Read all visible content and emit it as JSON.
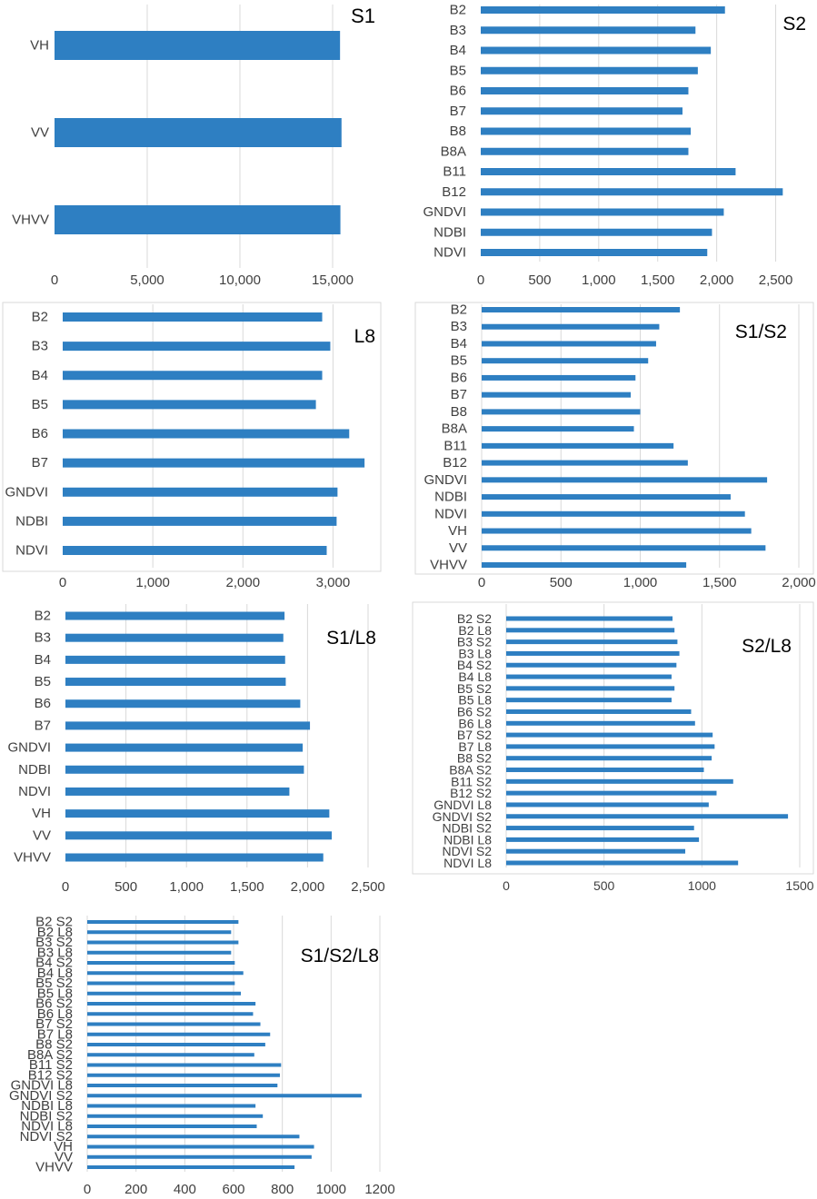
{
  "colors": {
    "bar": "#2e7fc2",
    "grid": "#d9d9d9",
    "text": "#404040",
    "title": "#000000"
  },
  "chart_data": [
    {
      "type": "bar",
      "orientation": "horizontal",
      "title": "S1",
      "categories": [
        "VH",
        "VV",
        "VHVV"
      ],
      "values": [
        15400,
        15480,
        15420
      ],
      "xlim": [
        0,
        17500
      ],
      "xticks": [
        0,
        5000,
        10000,
        15000
      ],
      "xtick_labels": [
        "0",
        "5,000",
        "10,000",
        "15,000"
      ],
      "legend": "none",
      "grid": true
    },
    {
      "type": "bar",
      "orientation": "horizontal",
      "title": "S2",
      "categories": [
        "B2",
        "B3",
        "B4",
        "B5",
        "B6",
        "B7",
        "B8",
        "B8A",
        "B11",
        "B12",
        "GNDVI",
        "NDBI",
        "NDVI"
      ],
      "values": [
        2070,
        1820,
        1950,
        1840,
        1760,
        1710,
        1780,
        1760,
        2160,
        2560,
        2060,
        1960,
        1920
      ],
      "xlim": [
        0,
        2750
      ],
      "xticks": [
        0,
        500,
        1000,
        1500,
        2000,
        2500
      ],
      "xtick_labels": [
        "0",
        "500",
        "1,000",
        "1,500",
        "2,000",
        "2,500"
      ],
      "legend": "none",
      "grid": true
    },
    {
      "type": "bar",
      "orientation": "horizontal",
      "title": "L8",
      "categories": [
        "B2",
        "B3",
        "B4",
        "B5",
        "B6",
        "B7",
        "GNDVI",
        "NDBI",
        "NDVI"
      ],
      "values": [
        2880,
        2970,
        2880,
        2810,
        3180,
        3350,
        3050,
        3040,
        2930
      ],
      "xlim": [
        0,
        3500
      ],
      "xticks": [
        0,
        1000,
        2000,
        3000
      ],
      "xtick_labels": [
        "0",
        "1,000",
        "2,000",
        "3,000"
      ],
      "legend": "none",
      "grid": true
    },
    {
      "type": "bar",
      "orientation": "horizontal",
      "title": "S1/S2",
      "categories": [
        "B2",
        "B3",
        "B4",
        "B5",
        "B6",
        "B7",
        "B8",
        "B8A",
        "B11",
        "B12",
        "GNDVI",
        "NDBI",
        "NDVI",
        "VH",
        "VV",
        "VHVV"
      ],
      "values": [
        1250,
        1120,
        1100,
        1050,
        970,
        940,
        1000,
        960,
        1210,
        1300,
        1800,
        1570,
        1660,
        1700,
        1790,
        1290
      ],
      "xlim": [
        0,
        2000
      ],
      "xticks": [
        0,
        500,
        1000,
        1500,
        2000
      ],
      "xtick_labels": [
        "0",
        "500",
        "1,000",
        "1,500",
        "2,000"
      ],
      "legend": "none",
      "grid": true
    },
    {
      "type": "bar",
      "orientation": "horizontal",
      "title": "S1/L8",
      "categories": [
        "B2",
        "B3",
        "B4",
        "B5",
        "B6",
        "B7",
        "GNDVI",
        "NDBI",
        "NDVI",
        "VH",
        "VV",
        "VHVV"
      ],
      "values": [
        1810,
        1800,
        1815,
        1820,
        1940,
        2020,
        1960,
        1970,
        1850,
        2180,
        2200,
        2130
      ],
      "xlim": [
        0,
        2500
      ],
      "xticks": [
        0,
        500,
        1000,
        1500,
        2000,
        2500
      ],
      "xtick_labels": [
        "0",
        "500",
        "1,000",
        "1,500",
        "2,000",
        "2,500"
      ],
      "legend": "none",
      "grid": true
    },
    {
      "type": "bar",
      "orientation": "horizontal",
      "title": "S2/L8",
      "categories": [
        "B2 S2",
        "B2 L8",
        "B3 S2",
        "B3 L8",
        "B4 S2",
        "B4 L8",
        "B5 S2",
        "B5 L8",
        "B6 S2",
        "B6 L8",
        "B7 S2",
        "B7 L8",
        "B8 S2",
        "B8A S2",
        "B11 S2",
        "B12 S2",
        "GNDVI L8",
        "GNDVI S2",
        "NDBI S2",
        "NDBI L8",
        "NDVI S2",
        "NDVI L8"
      ],
      "values": [
        850,
        860,
        875,
        885,
        870,
        845,
        860,
        845,
        945,
        965,
        1055,
        1065,
        1050,
        1010,
        1160,
        1075,
        1035,
        1440,
        960,
        985,
        915,
        1185
      ],
      "xlim": [
        0,
        1500
      ],
      "xticks": [
        0,
        500,
        1000,
        1500
      ],
      "xtick_labels": [
        "0",
        "500",
        "1000",
        "1500"
      ],
      "legend": "none",
      "grid": true
    },
    {
      "type": "bar",
      "orientation": "horizontal",
      "title": "S1/S2/L8",
      "categories": [
        "B2 S2",
        "B2 L8",
        "B3 S2",
        "B3 L8",
        "B4 S2",
        "B4 L8",
        "B5 S2",
        "B5 L8",
        "B6 S2",
        "B6 L8",
        "B7 S2",
        "B7 L8",
        "B8 S2",
        "B8A S2",
        "B11 S2",
        "B12 S2",
        "GNDVI L8",
        "GNDVI S2",
        "NDBI L8",
        "NDBI S2",
        "NDVI L8",
        "NDVI S2",
        "VH",
        "VV",
        "VHVV"
      ],
      "values": [
        620,
        590,
        620,
        590,
        605,
        640,
        605,
        630,
        690,
        680,
        710,
        750,
        730,
        685,
        795,
        790,
        780,
        1125,
        690,
        720,
        695,
        870,
        930,
        920,
        850
      ],
      "xlim": [
        0,
        1200
      ],
      "xticks": [
        0,
        200,
        400,
        600,
        800,
        1000,
        1200
      ],
      "xtick_labels": [
        "0",
        "200",
        "400",
        "600",
        "800",
        "1000",
        "1200"
      ],
      "legend": "none",
      "grid": true
    }
  ]
}
